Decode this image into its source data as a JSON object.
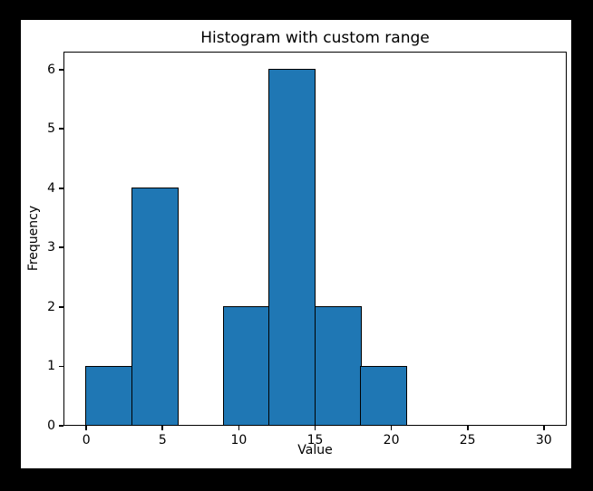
{
  "window": {
    "background_color": "#000000",
    "figure_background_color": "#ffffff"
  },
  "chart_data": {
    "type": "bar",
    "subtype": "histogram",
    "title": "Histogram with custom range",
    "xlabel": "Value",
    "ylabel": "Frequency",
    "bin_edges": [
      0,
      3,
      6,
      9,
      12,
      15,
      18,
      21,
      24,
      27,
      30
    ],
    "frequencies": [
      1,
      4,
      0,
      2,
      6,
      2,
      1,
      0,
      0,
      0
    ],
    "x_ticks": [
      0,
      5,
      10,
      15,
      20,
      25,
      30
    ],
    "y_ticks": [
      0,
      1,
      2,
      3,
      4,
      5,
      6
    ],
    "xlim": [
      -1.5,
      31.5
    ],
    "ylim": [
      0,
      6.3
    ],
    "bar_color": "#1f77b4",
    "bar_edge_color": "#000000",
    "grid": false,
    "legend": null
  }
}
